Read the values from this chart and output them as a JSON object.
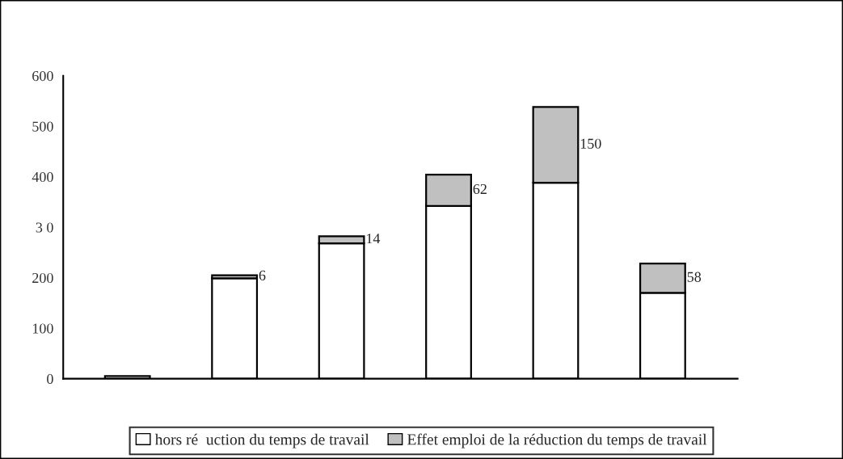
{
  "chart_data": {
    "type": "bar",
    "stacked": true,
    "categories": [
      null,
      null,
      null,
      null,
      null,
      null
    ],
    "series": [
      {
        "name": "hors ré  uction du temps de travail",
        "color": "#ffffff",
        "values": [
          5,
          199,
          268,
          342,
          388,
          170
        ]
      },
      {
        "name": "Effet emploi de la réduction du temps de travail",
        "color": "#c0c0c0",
        "values": [
          null,
          6,
          14,
          62,
          150,
          58
        ],
        "value_labels": [
          null,
          "6",
          "14",
          "62",
          "150",
          "58"
        ]
      }
    ],
    "ylim": [
      0,
      600
    ],
    "yticks": [
      0,
      100,
      200,
      {
        "value": 300,
        "label": "3 0"
      },
      400,
      500,
      600
    ],
    "grid": false,
    "legend": "bottom"
  }
}
